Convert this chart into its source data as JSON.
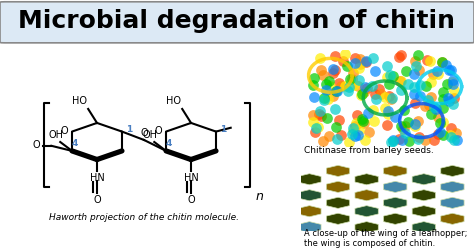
{
  "title": "Microbial degradation of chitin",
  "title_fontsize": 18,
  "title_bg_color": "#dce9f5",
  "title_border_color": "#888888",
  "bg_color": "#ffffff",
  "caption_left": "Haworth projection of the chitin molecule.",
  "caption_right1": "Chitinase from barley seeds.",
  "caption_right2": "A close-up of the wing of a leafhopper;\nthe wing is composed of chitin.",
  "label_4_color": "#4a7fc1",
  "label_1_color": "#4a7fc1",
  "n_label": "n",
  "caption_fontsize": 7.5,
  "struct_bg": "#ffffff"
}
